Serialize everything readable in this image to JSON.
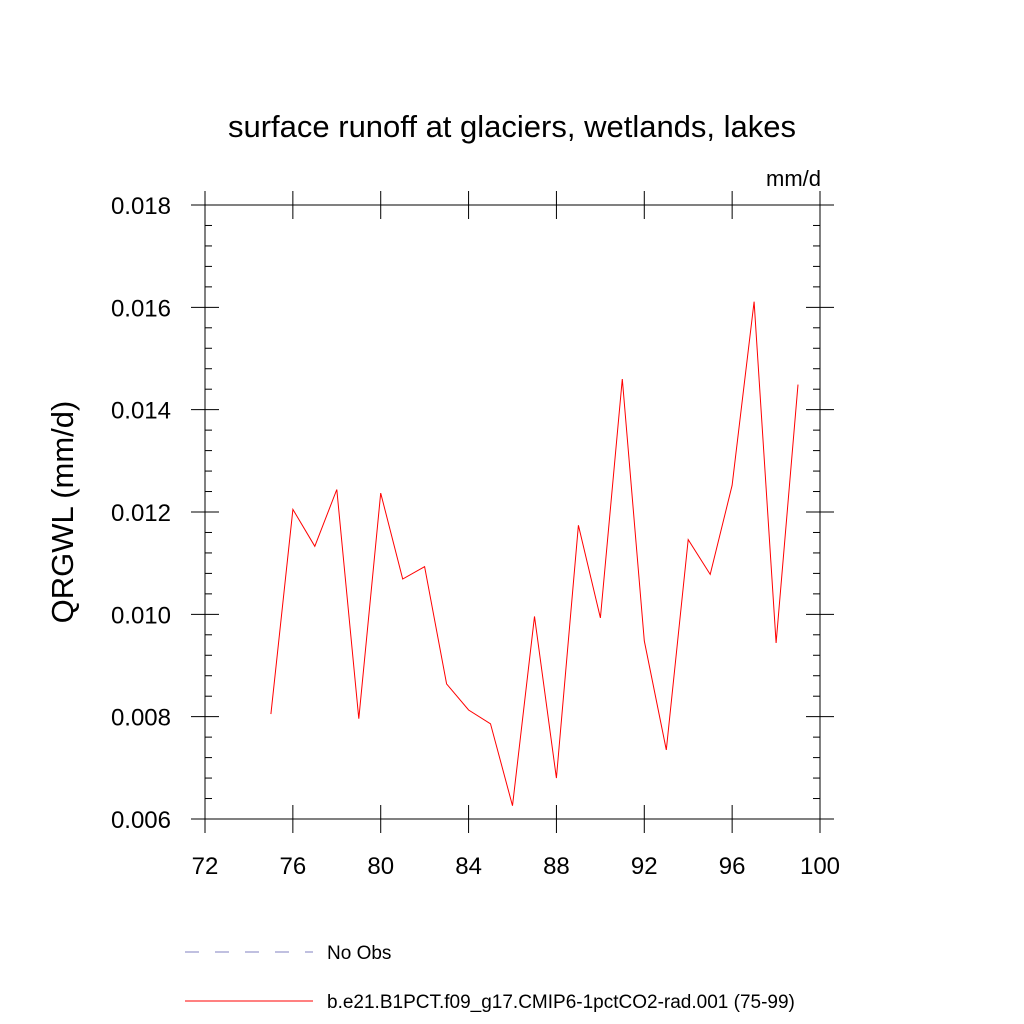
{
  "chart_data": {
    "type": "line",
    "title": "surface runoff at glaciers, wetlands, lakes",
    "units": "mm/d",
    "ylabel": "QRGWL  (mm/d)",
    "xlabel": "",
    "xlim": [
      72,
      100
    ],
    "ylim": [
      0.006,
      0.018
    ],
    "xticks": [
      72,
      76,
      80,
      84,
      88,
      92,
      96,
      100
    ],
    "xtick_labels": [
      "72",
      "76",
      "80",
      "84",
      "88",
      "92",
      "96",
      "100"
    ],
    "yticks": [
      0.006,
      0.008,
      0.01,
      0.012,
      0.014,
      0.016,
      0.018
    ],
    "ytick_labels": [
      "0.006",
      "0.008",
      "0.010",
      "0.012",
      "0.014",
      "0.016",
      "0.018"
    ],
    "grid": false,
    "legend_position": "bottom",
    "series": [
      {
        "name": "b.e21.B1PCT.f09_g17.CMIP6-1pctCO2-rad.001 (75-99)",
        "color": "#ff0000",
        "style": "solid",
        "x": [
          75,
          76,
          77,
          78,
          79,
          80,
          81,
          82,
          83,
          84,
          85,
          86,
          87,
          88,
          89,
          90,
          91,
          92,
          93,
          94,
          95,
          96,
          97,
          98,
          99
        ],
        "values": [
          0.00805,
          0.01205,
          0.01133,
          0.01244,
          0.00796,
          0.01237,
          0.01069,
          0.01093,
          0.00864,
          0.00813,
          0.00786,
          0.00626,
          0.00996,
          0.0068,
          0.01174,
          0.00993,
          0.0146,
          0.00948,
          0.00735,
          0.01146,
          0.01078,
          0.01252,
          0.01611,
          0.00944,
          0.01449
        ]
      }
    ],
    "legend": [
      {
        "label": "No Obs",
        "color": "#8080c0",
        "style": "dashed"
      },
      {
        "label": "b.e21.B1PCT.f09_g17.CMIP6-1pctCO2-rad.001 (75-99)",
        "color": "#ff0000",
        "style": "solid"
      }
    ]
  }
}
